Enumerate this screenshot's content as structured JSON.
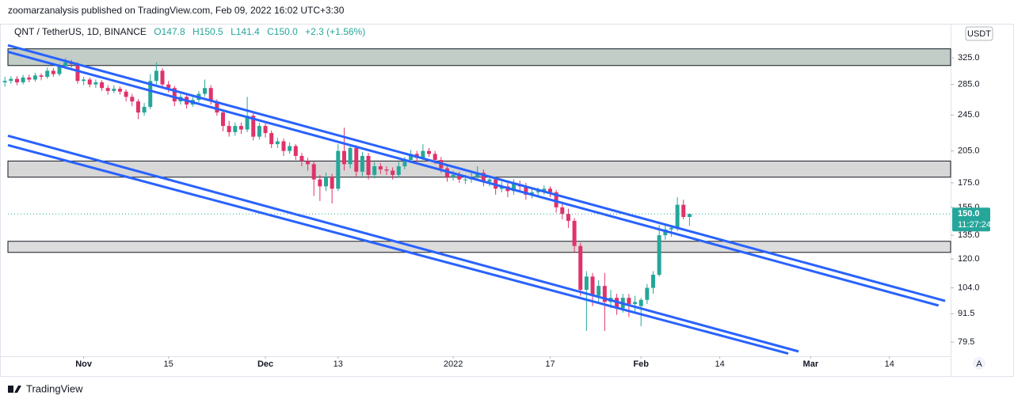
{
  "published": "zoomarzanalysis published on TradingView.com, Feb 09, 2022 16:02 UTC+3:30",
  "footer": "TradingView",
  "chart_data": {
    "type": "candlestick",
    "symbol": "QNT / TetherUS, 1D, BINANCE",
    "ohlc_labels": [
      "O147.8",
      "H150.5",
      "L141.4",
      "C150.0"
    ],
    "change_label": "+2.3 (+1.56%)",
    "currency": "USDT",
    "last_price_label": "150.0",
    "countdown": "11:27:24",
    "scale_mode": "A",
    "log_scale": true,
    "up_color": "#26a69a",
    "down_color": "#e0326a",
    "x": [
      -74,
      -73,
      -72,
      -71,
      -70,
      -69,
      -68,
      -67,
      -66,
      -65,
      -64,
      -63,
      -62,
      -61,
      -60,
      -59,
      -58,
      -57,
      -56,
      -55,
      -54,
      -53,
      -52,
      -51,
      -50,
      -49,
      -48,
      -47,
      -46,
      -45,
      -44,
      -43,
      -42,
      -41,
      -40,
      -39,
      -38,
      -37,
      -36,
      -35,
      -34,
      -33,
      -32,
      -31,
      -30,
      -29,
      -28,
      -27,
      -26,
      -25,
      -24,
      -23,
      -22,
      -21,
      -20,
      -19,
      -18,
      -17,
      -16,
      -15,
      -14,
      -13,
      -12,
      -11,
      -10,
      -9,
      -8,
      -7,
      -6,
      -5,
      -4,
      -3,
      -2,
      -1,
      0,
      1,
      2,
      3,
      4,
      5,
      6,
      7,
      8,
      9,
      10,
      11,
      12,
      13,
      14,
      15,
      16,
      17,
      18,
      19,
      20,
      21,
      22,
      23,
      24,
      25,
      26,
      27,
      28,
      29,
      30,
      31,
      32,
      33,
      34,
      35,
      36,
      37,
      38,
      39
    ],
    "open": [
      288,
      290,
      293,
      288,
      295,
      292,
      298,
      296,
      305,
      300,
      312,
      318,
      315,
      290,
      292,
      285,
      288,
      280,
      276,
      279,
      275,
      268,
      262,
      248,
      255,
      290,
      305,
      285,
      280,
      262,
      268,
      258,
      264,
      272,
      280,
      262,
      248,
      232,
      225,
      232,
      228,
      244,
      220,
      232,
      224,
      212,
      215,
      205,
      210,
      200,
      195,
      192,
      178,
      172,
      180,
      170,
      205,
      192,
      208,
      185,
      200,
      182,
      190,
      187,
      186,
      182,
      190,
      196,
      202,
      198,
      205,
      202,
      196,
      188,
      180,
      182,
      178,
      178,
      180,
      184,
      176,
      178,
      170,
      172,
      168,
      174,
      172,
      165,
      167,
      168,
      170,
      167,
      155,
      150,
      145,
      128,
      103,
      110,
      100,
      105,
      97,
      99,
      94,
      99,
      96,
      95,
      98,
      104,
      111,
      135,
      139,
      140,
      157,
      147.8
    ],
    "high": [
      296,
      297,
      297,
      299,
      299,
      302,
      301,
      310,
      309,
      316,
      325,
      322,
      318,
      296,
      295,
      292,
      291,
      284,
      284,
      282,
      278,
      272,
      265,
      260,
      300,
      318,
      309,
      290,
      283,
      272,
      271,
      268,
      276,
      292,
      284,
      265,
      252,
      238,
      236,
      236,
      268,
      247,
      236,
      235,
      227,
      219,
      218,
      214,
      212,
      203,
      198,
      195,
      182,
      184,
      183,
      212,
      230,
      212,
      211,
      204,
      203,
      194,
      193,
      190,
      189,
      194,
      199,
      206,
      205,
      212,
      208,
      205,
      199,
      191,
      186,
      185,
      182,
      186,
      190,
      187,
      181,
      180,
      176,
      175,
      178,
      177,
      175,
      170,
      171,
      173,
      172,
      169,
      158,
      154,
      147,
      130,
      113,
      112,
      108,
      112,
      103,
      101,
      101,
      101,
      100,
      99,
      106,
      113,
      142,
      143,
      142,
      163,
      161,
      150.5
    ],
    "low": [
      282,
      286,
      284,
      285,
      288,
      289,
      291,
      293,
      296,
      297,
      308,
      310,
      286,
      284,
      281,
      280,
      276,
      271,
      273,
      271,
      262,
      256,
      240,
      244,
      252,
      285,
      280,
      274,
      256,
      258,
      253,
      255,
      261,
      268,
      258,
      244,
      226,
      220,
      221,
      223,
      225,
      216,
      217,
      219,
      208,
      208,
      200,
      202,
      196,
      190,
      186,
      164,
      160,
      168,
      158,
      168,
      186,
      188,
      180,
      181,
      178,
      179,
      183,
      182,
      178,
      180,
      187,
      193,
      194,
      196,
      199,
      192,
      184,
      176,
      177,
      175,
      174,
      175,
      177,
      172,
      172,
      165,
      167,
      163,
      165,
      168,
      161,
      162,
      164,
      165,
      163,
      151,
      146,
      140,
      124,
      100,
      84,
      95,
      97,
      84,
      94,
      91,
      92,
      90,
      92,
      86,
      96,
      101,
      110,
      132,
      134,
      138,
      146,
      141.4
    ],
    "close": [
      290,
      293,
      288,
      295,
      292,
      298,
      296,
      305,
      300,
      312,
      318,
      315,
      290,
      292,
      285,
      288,
      280,
      276,
      279,
      275,
      268,
      262,
      248,
      255,
      290,
      305,
      285,
      280,
      262,
      268,
      258,
      264,
      272,
      280,
      262,
      248,
      232,
      225,
      232,
      228,
      244,
      220,
      232,
      224,
      212,
      215,
      205,
      210,
      200,
      195,
      192,
      178,
      172,
      180,
      170,
      205,
      192,
      208,
      185,
      200,
      182,
      190,
      187,
      186,
      182,
      190,
      196,
      202,
      198,
      205,
      202,
      196,
      188,
      180,
      182,
      178,
      178,
      180,
      184,
      176,
      178,
      170,
      172,
      168,
      174,
      172,
      165,
      167,
      168,
      170,
      167,
      155,
      150,
      145,
      128,
      103,
      110,
      100,
      105,
      97,
      99,
      94,
      99,
      96,
      97,
      98,
      104,
      111,
      135,
      139,
      140,
      157,
      147.8,
      150
    ],
    "xlim": [
      -73.5,
      82.1
    ],
    "xticks": [
      {
        "value": -61,
        "label": "Nov"
      },
      {
        "value": -47,
        "label": "15"
      },
      {
        "value": -31,
        "label": "Dec"
      },
      {
        "value": -19,
        "label": "13"
      },
      {
        "value": 0,
        "label": "2022"
      },
      {
        "value": 16,
        "label": "17"
      },
      {
        "value": 31,
        "label": "Feb"
      },
      {
        "value": 44,
        "label": "14"
      },
      {
        "value": 59,
        "label": "Mar"
      },
      {
        "value": 72,
        "label": "14"
      }
    ],
    "ylim": [
      74.1,
      385
    ],
    "yticks": [
      {
        "value": 325,
        "label": "325.0"
      },
      {
        "value": 285,
        "label": "285.0"
      },
      {
        "value": 245,
        "label": "245.0"
      },
      {
        "value": 205,
        "label": "205.0"
      },
      {
        "value": 175,
        "label": "175.0"
      },
      {
        "value": 155,
        "label": "155.0"
      },
      {
        "value": 135,
        "label": "135.0"
      },
      {
        "value": 120,
        "label": "120.0"
      },
      {
        "value": 104,
        "label": "104.0"
      },
      91.5,
      79.5
    ],
    "zones": [
      {
        "from": 313,
        "to": 340,
        "color": "#b7c4bd"
      },
      {
        "from": 180,
        "to": 195,
        "color": "#d0d0d0"
      },
      {
        "from": 124,
        "to": 131,
        "color": "#d6d6d6"
      }
    ],
    "trend_lines": [
      {
        "x": [
          -73.5,
          81.2
        ],
        "y": [
          346,
          97.5
        ]
      },
      {
        "x": [
          -73.5,
          80.1
        ],
        "y": [
          335,
          95.3
        ]
      },
      {
        "x": [
          -73.5,
          57
        ],
        "y": [
          221,
          75.9
        ]
      },
      {
        "x": [
          -73.5,
          55.3
        ],
        "y": [
          211,
          75.1
        ]
      }
    ],
    "line_color": "#2962ff"
  }
}
